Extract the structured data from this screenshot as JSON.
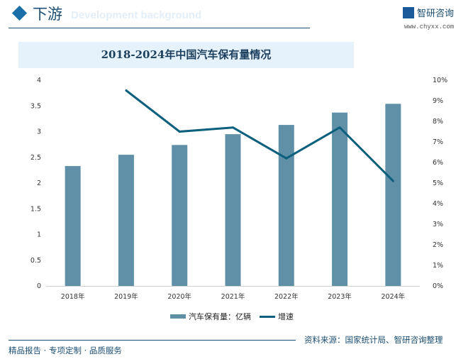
{
  "header": {
    "section_title": "下游",
    "section_subtitle": "Development background",
    "logo_text": "智研咨询",
    "url": "www.chyxx.com"
  },
  "chart_data": {
    "type": "bar+line",
    "title": "2018-2024年中国汽车保有量情况",
    "categories": [
      "2018年",
      "2019年",
      "2020年",
      "2021年",
      "2022年",
      "2023年",
      "2024年"
    ],
    "series": [
      {
        "name": "汽车保有量：亿辆",
        "type": "bar",
        "axis": "left",
        "color": "#5f90a8",
        "values": [
          2.33,
          2.55,
          2.74,
          2.95,
          3.13,
          3.37,
          3.54
        ]
      },
      {
        "name": "增速",
        "type": "line",
        "axis": "right",
        "color": "#0d5f7e",
        "values": [
          null,
          9.5,
          7.5,
          7.7,
          6.2,
          7.7,
          5.1
        ]
      }
    ],
    "left_axis": {
      "ylim": [
        0,
        4
      ],
      "ticks": [
        "0",
        "0.5",
        "1",
        "1.5",
        "2",
        "2.5",
        "3",
        "3.5",
        "4"
      ]
    },
    "right_axis": {
      "ylim": [
        0,
        10
      ],
      "ticks": [
        "0%",
        "1%",
        "2%",
        "3%",
        "4%",
        "5%",
        "6%",
        "7%",
        "8%",
        "9%",
        "10%"
      ]
    },
    "grid": false,
    "legend": "bottom"
  },
  "footer": {
    "source": "资料来源：国家统计局、智研咨询整理",
    "slogan": "精品报告 · 专项定制 · 品质服务"
  }
}
